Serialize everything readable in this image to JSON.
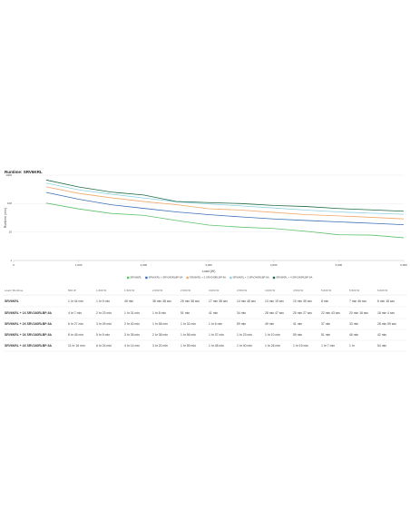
{
  "chart_data": {
    "type": "line",
    "title": "Runtime: SRV6KRL",
    "x_label": "Load (W)",
    "y_label": "Runtime (min)",
    "x": [
      500,
      1000,
      1500,
      2000,
      2500,
      3000,
      3500,
      4000,
      4500,
      5000,
      5500,
      6000
    ],
    "series": [
      {
        "name": "SRV6KRL",
        "color": "#5cc36a",
        "values": [
          104,
          65,
          45,
          38.6,
          25.6,
          17.6,
          14.8,
          13.3,
          10.6,
          8,
          7.8,
          6.3
        ]
      },
      {
        "name": "SRV6KRL + SRV240RLBP-9A",
        "color": "#3b6fb6",
        "values": [
          247,
          143,
          91,
          68,
          51,
          41,
          34,
          28.8,
          25.5,
          22.7,
          20.3,
          18.1
        ]
      },
      {
        "name": "SRV6KRL + 2 SRV240RLBP-9A",
        "color": "#f0a868",
        "values": [
          387,
          229,
          160,
          118,
          92,
          66,
          59,
          49,
          41,
          37,
          33,
          29
        ]
      },
      {
        "name": "SRV6KRL + 3 SRV240RLBP-9A",
        "color": "#8fd3e3",
        "values": [
          525,
          305,
          215,
          158,
          116,
          97,
          83,
          70,
          59,
          51,
          46,
          42
        ]
      },
      {
        "name": "SRV6KRL + 4 SRV240RLBP-9A",
        "color": "#1f6b45",
        "values": [
          676,
          384,
          254,
          200,
          119,
          108,
          100,
          86,
          79,
          67,
          60,
          54
        ]
      }
    ],
    "log_y": true,
    "grid": true,
    "xlim": [
      0,
      6000
    ],
    "xticks": [
      0,
      {
        "value": 1000,
        "label": "1,000"
      },
      {
        "value": 2000,
        "label": "2,000"
      },
      {
        "value": 3000,
        "label": "3,000"
      },
      {
        "value": 4000,
        "label": "4,000"
      },
      {
        "value": 5000,
        "label": "5,000"
      },
      {
        "value": 6000,
        "label": "6,000"
      }
    ],
    "ylim": [
      1,
      1000
    ],
    "yticks": [
      1,
      10,
      100,
      1000
    ],
    "legend": "bottom"
  },
  "table": {
    "header": [
      "Load / Runtime",
      "500 W",
      "1,000 W",
      "1,500 W",
      "2,000 W",
      "2,500 W",
      "3,000 W",
      "3,500 W",
      "4,000 W",
      "4,500 W",
      "5,000 W",
      "5,500 W",
      "6,000 W"
    ],
    "rows": [
      [
        "SRV6KRL",
        "1 hr 44 min",
        "1 hr 5 min",
        "45 min",
        "38 min 38 sec",
        "25 min 38 sec",
        "17 min 38 sec",
        "14 min 48 sec",
        "13 min 19 sec",
        "10 min 35 sec",
        "8 min",
        "7 min 46 sec",
        "6 min 18 sec"
      ],
      [
        "SRV6KRL + 1X SRV240RLBP-9A",
        "4 hr 7 min",
        "2 hr 23 min",
        "1 hr 31 min",
        "1 hr 8 min",
        "51 min",
        "41 min",
        "34 min",
        "28 min 47 sec",
        "25 min 27 sec",
        "22 min 43 sec",
        "20 min 18 sec",
        "18 min 4 sec"
      ],
      [
        "SRV6KRL + 2X SRV240RLBP-9A",
        "6 hr 27 min",
        "3 hr 49 min",
        "2 hr 40 min",
        "1 hr 58 min",
        "1 hr 32 min",
        "1 hr 6 min",
        "59 min",
        "49 min",
        "41 min",
        "37 min",
        "33 min",
        "28 min 59 sec"
      ],
      [
        "SRV6KRL + 3X SRV240RLBP-9A",
        "8 hr 45 min",
        "5 hr 5 min",
        "3 hr 35 min",
        "2 hr 38 min",
        "1 hr 56 min",
        "1 hr 37 min",
        "1 hr 23 min",
        "1 hr 10 min",
        "59 min",
        "51 min",
        "46 min",
        "42 min"
      ],
      [
        "SRV6KRL + 4X SRV240RLBP-9A",
        "11 hr 16 min",
        "6 hr 24 min",
        "4 hr 14 min",
        "3 hr 20 min",
        "1 hr 59 min",
        "1 hr 48 min",
        "1 hr 40 min",
        "1 hr 26 min",
        "1 hr 19 min",
        "1 hr 7 min",
        "1 hr",
        "54 min"
      ]
    ]
  }
}
